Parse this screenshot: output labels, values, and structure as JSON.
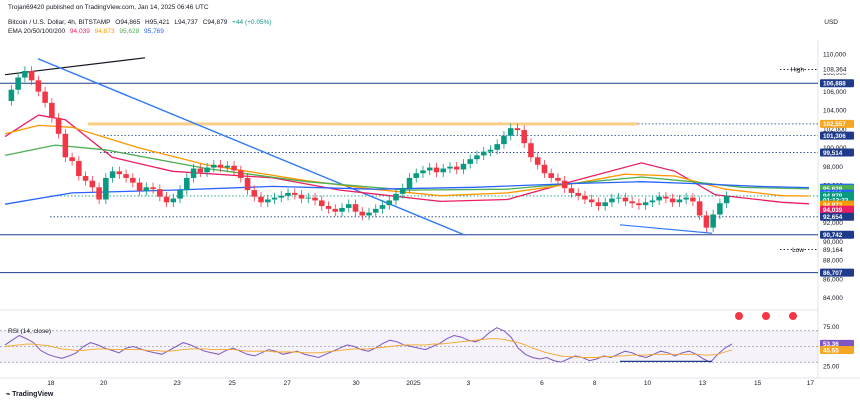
{
  "header": {
    "publisher": "Trojan69420 published on TradingView.com, Jan 14, 2025 06:46 UTC",
    "symbol": "Bitcoin / U.S. Dollar, 4h, BITSTAMP",
    "ohlc": {
      "o": "O94,865",
      "h": "H95,421",
      "l": "L94,737",
      "c": "C94,879",
      "chg": "+44 (+0.05%)"
    },
    "ema_label": "EMA 20/50/100/200",
    "ema_values": [
      "94,039",
      "94,873",
      "95,628",
      "95,769"
    ],
    "currency": "USD",
    "brand": "TradingView"
  },
  "colors": {
    "up": "#089981",
    "down": "#f23645",
    "ema20": "#e91e63",
    "ema50": "#ff9800",
    "ema100": "#4caf50",
    "ema200": "#2962ff",
    "trend_blue": "#3179f5",
    "support": "#1e3a8a",
    "resistance": "#f5a623",
    "rsi": "#7e57c2",
    "rsi_ma": "#f5a623"
  },
  "chart_data": [
    {
      "type": "line",
      "name": "price",
      "ylim": [
        84000,
        111500
      ],
      "y_ticks": [
        "110,000",
        "108,000",
        "106,000",
        "104,000",
        "102,000",
        "100,000",
        "98,000",
        "96,000",
        "94,000",
        "92,000",
        "90,000",
        "88,000",
        "86,000",
        "84,000"
      ],
      "x_ticks": [
        "18",
        "20",
        "23",
        "25",
        "27",
        "30",
        "2025",
        "3",
        "6",
        "8",
        "10",
        "13",
        "15",
        "17"
      ],
      "series": [
        {
          "name": "EMA 20",
          "color": "#e91e63",
          "values": [
            [
              0,
              101200
            ],
            [
              10,
              103500
            ],
            [
              18,
              103000
            ],
            [
              32,
              99000
            ],
            [
              50,
              97500
            ],
            [
              80,
              96800
            ],
            [
              100,
              95500
            ],
            [
              130,
              94300
            ],
            [
              150,
              94500
            ],
            [
              170,
              96500
            ],
            [
              190,
              98400
            ],
            [
              200,
              97500
            ],
            [
              212,
              95000
            ],
            [
              232,
              94200
            ],
            [
              240,
              94039
            ]
          ]
        },
        {
          "name": "EMA 50",
          "color": "#ff9800",
          "values": [
            [
              0,
              101500
            ],
            [
              10,
              102400
            ],
            [
              20,
              102200
            ],
            [
              40,
              100000
            ],
            [
              60,
              98200
            ],
            [
              90,
              96500
            ],
            [
              110,
              95600
            ],
            [
              130,
              94900
            ],
            [
              150,
              95200
            ],
            [
              170,
              96200
            ],
            [
              185,
              97200
            ],
            [
              200,
              97000
            ],
            [
              215,
              95600
            ],
            [
              232,
              94900
            ],
            [
              240,
              94873
            ]
          ]
        },
        {
          "name": "EMA 100",
          "color": "#4caf50",
          "values": [
            [
              0,
              99200
            ],
            [
              15,
              100300
            ],
            [
              30,
              99800
            ],
            [
              60,
              97800
            ],
            [
              90,
              96400
            ],
            [
              120,
              95500
            ],
            [
              150,
              95600
            ],
            [
              175,
              96400
            ],
            [
              190,
              96900
            ],
            [
              205,
              96400
            ],
            [
              220,
              95800
            ],
            [
              240,
              95628
            ]
          ]
        },
        {
          "name": "EMA 200",
          "color": "#2962ff",
          "values": [
            [
              0,
              94000
            ],
            [
              20,
              95200
            ],
            [
              50,
              95500
            ],
            [
              80,
              95900
            ],
            [
              110,
              95600
            ],
            [
              140,
              95800
            ],
            [
              170,
              96200
            ],
            [
              190,
              96400
            ],
            [
              205,
              96200
            ],
            [
              225,
              95900
            ],
            [
              240,
              95769
            ]
          ]
        }
      ],
      "candles_close": [
        106200,
        107500,
        108200,
        107200,
        106000,
        104800,
        103200,
        101500,
        99000,
        98600,
        97000,
        96500,
        95800,
        94500,
        96800,
        97500,
        97200,
        96800,
        96300,
        95400,
        95800,
        95600,
        94800,
        94200,
        94600,
        95500,
        96800,
        97800,
        97400,
        97900,
        98200,
        97900,
        98100,
        97600,
        96800,
        95500,
        94800,
        94200,
        94500,
        94700,
        94900,
        95200,
        95000,
        94600,
        94700,
        94400,
        93800,
        93500,
        93200,
        93600,
        94000,
        93200,
        92800,
        93100,
        93500,
        93900,
        94400,
        95100,
        95700,
        96800,
        97300,
        97600,
        97900,
        97400,
        97800,
        98000,
        97700,
        98300,
        98800,
        99200,
        99600,
        99800,
        100400,
        101300,
        102100,
        101900,
        100500,
        99000,
        98200,
        97300,
        96800,
        96500,
        95700,
        95200,
        94900,
        94500,
        94200,
        93800,
        94200,
        94600,
        94700,
        94300,
        94100,
        93900,
        94200,
        94400,
        94800,
        94600,
        94200,
        94500,
        94700,
        94300,
        92800,
        91500,
        92900,
        94100,
        94879
      ],
      "horizontal_levels": [
        {
          "label": "High",
          "value": "108,364",
          "price": 108364,
          "style": "dotted",
          "color": "#131722"
        },
        {
          "value": "106,888",
          "price": 106888,
          "style": "solid",
          "color": "#1e3a8a"
        },
        {
          "value": "102,557",
          "price": 102557,
          "style": "band",
          "color": "#f5a623"
        },
        {
          "value": "101,306",
          "price": 101306,
          "style": "dotted",
          "color": "#1e3a8a"
        },
        {
          "value": "99,514",
          "price": 99514,
          "style": "dotted",
          "color": "#1e3a8a"
        },
        {
          "value": "95,769",
          "price": 95769,
          "style": "tag",
          "color": "#2962ff"
        },
        {
          "value": "95,628",
          "price": 95628,
          "style": "tag",
          "color": "#4caf50"
        },
        {
          "value": "95,119",
          "price": 95119,
          "style": "tag",
          "color": "#2962ff"
        },
        {
          "value": "94,879",
          "price": 94879,
          "style": "dotted",
          "color": "#089981"
        },
        {
          "value": "01:13:33",
          "price": 94400,
          "style": "tag",
          "color": "#089981"
        },
        {
          "value": "94,873",
          "price": 93950,
          "style": "tag",
          "color": "#ff9800"
        },
        {
          "value": "94,039",
          "price": 93400,
          "style": "tag",
          "color": "#e91e63"
        },
        {
          "value": "92,654",
          "price": 92654,
          "style": "dotted",
          "color": "#1e3a8a"
        },
        {
          "value": "90,742",
          "price": 90742,
          "style": "solid",
          "color": "#1e3a8a"
        },
        {
          "label": "Low",
          "value": "89,164",
          "price": 89164,
          "style": "dotted",
          "color": "#131722"
        },
        {
          "value": "86,707",
          "price": 86707,
          "style": "solid",
          "color": "#1e3a8a"
        }
      ]
    },
    {
      "type": "line",
      "name": "RSI",
      "label": "RSI (14, close)",
      "values_shown": [
        "53.36",
        "45.55"
      ],
      "ylim": [
        20,
        80
      ],
      "y_ticks": [
        "75.00",
        "50.00",
        "25.00"
      ],
      "rsi": [
        52,
        58,
        64,
        60,
        55,
        45,
        40,
        37,
        35,
        38,
        42,
        50,
        55,
        52,
        48,
        45,
        42,
        48,
        50,
        47,
        44,
        42,
        40,
        45,
        50,
        55,
        52,
        48,
        44,
        42,
        40,
        45,
        48,
        44,
        40,
        38,
        42,
        46,
        44,
        40,
        42,
        44,
        40,
        38,
        36,
        40,
        44,
        48,
        52,
        50,
        46,
        44,
        48,
        54,
        58,
        56,
        52,
        50,
        48,
        46,
        50,
        54,
        60,
        64,
        62,
        58,
        56,
        60,
        68,
        74,
        70,
        62,
        48,
        40,
        36,
        34,
        36,
        32,
        30,
        34,
        38,
        36,
        32,
        34,
        38,
        36,
        40,
        44,
        42,
        38,
        36,
        40,
        44,
        42,
        38,
        42,
        44,
        40,
        34,
        30,
        40,
        48,
        53.36
      ],
      "rsi_ma": [
        50,
        51,
        52,
        53,
        53,
        52,
        51,
        49,
        47,
        46,
        45,
        45,
        46,
        47,
        47,
        46,
        46,
        46,
        46,
        46,
        45,
        45,
        44,
        44,
        45,
        46,
        47,
        47,
        47,
        46,
        46,
        46,
        46,
        45,
        44,
        44,
        44,
        44,
        43,
        43,
        43,
        43,
        42,
        42,
        42,
        43,
        44,
        45,
        46,
        47,
        47,
        47,
        48,
        49,
        50,
        51,
        52,
        52,
        52,
        52,
        53,
        53,
        54,
        55,
        56,
        57,
        58,
        59,
        60,
        60,
        59,
        57,
        55,
        52,
        48,
        45,
        42,
        40,
        38,
        37,
        37,
        36,
        36,
        36,
        37,
        37,
        38,
        38,
        39,
        39,
        39,
        40,
        40,
        40,
        40,
        40,
        40,
        40,
        39,
        39,
        40,
        43,
        45.55
      ]
    }
  ]
}
